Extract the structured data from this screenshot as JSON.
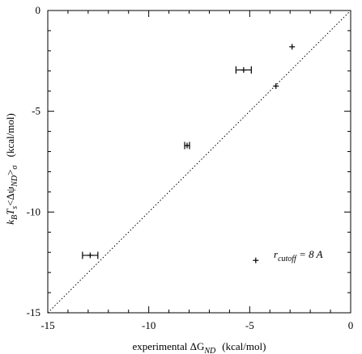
{
  "chart_data": {
    "type": "scatter",
    "title": "",
    "xlabel": {
      "prefix": "experimental ΔG",
      "subscript": "ND",
      "unit": "(kcal/mol)"
    },
    "ylabel": {
      "parts": [
        {
          "text": "k",
          "italic": true
        },
        {
          "text": "B",
          "sub": true,
          "italic": true
        },
        {
          "text": "T",
          "italic": true
        },
        {
          "text": "s",
          "sub": true,
          "italic": true
        },
        {
          "text": "<Δψ",
          "italic": false
        },
        {
          "text": "ND",
          "sub": true,
          "italic": true
        },
        {
          "text": ">",
          "italic": false
        },
        {
          "text": "σ",
          "sub": true,
          "italic": false
        }
      ],
      "unit": "(kcal/mol)"
    },
    "xlim": [
      -15,
      0
    ],
    "ylim": [
      -15,
      0
    ],
    "xticks": [
      -15,
      -10,
      -5,
      0
    ],
    "yticks": [
      -15,
      -10,
      -5,
      0
    ],
    "reference_line": {
      "style": "dotted",
      "from": [
        -15,
        -15
      ],
      "to": [
        0,
        0
      ]
    },
    "annotation": {
      "main": "r",
      "subscript": "cutoff",
      "suffix": " = 8 A"
    },
    "legend_marker": {
      "x": -4.7,
      "y": -12.4
    },
    "points": [
      {
        "x": -2.9,
        "y": -1.8,
        "xerr": 0.0
      },
      {
        "x": -3.7,
        "y": -3.75,
        "xerr": 0.0
      },
      {
        "x": -5.3,
        "y": -2.95,
        "xerr": 0.38
      },
      {
        "x": -8.1,
        "y": -6.7,
        "xerr": 0.12
      },
      {
        "x": -12.9,
        "y": -12.15,
        "xerr": 0.38
      }
    ]
  }
}
